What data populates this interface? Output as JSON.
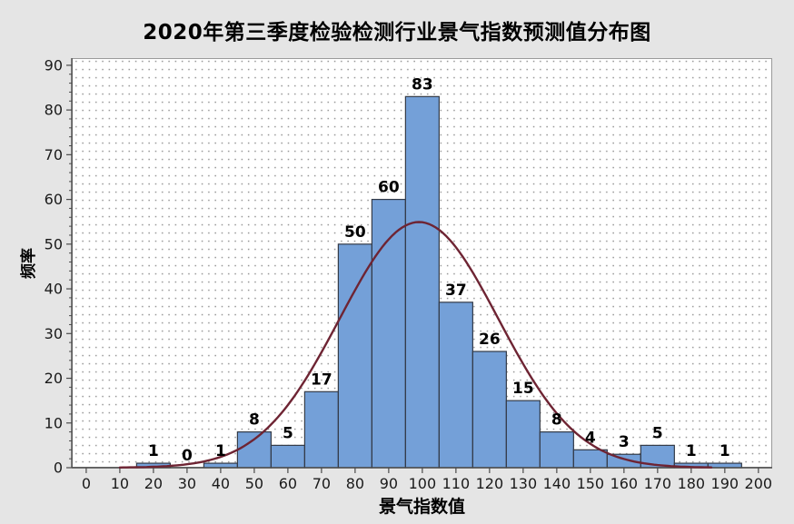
{
  "title": "2020年第三季度检验检测行业景气指数预测值分布图",
  "axes": {
    "x_label": "景气指数值",
    "y_label": "频率"
  },
  "chart_data": {
    "type": "bar",
    "subtype": "histogram-with-normal-fit",
    "title": "2020年第三季度检验检测行业景气指数预测值分布图",
    "xlabel": "景气指数值",
    "ylabel": "频率",
    "bin_centers": [
      20,
      30,
      40,
      50,
      60,
      70,
      80,
      90,
      100,
      110,
      120,
      130,
      140,
      150,
      160,
      170,
      180,
      190
    ],
    "bin_width": 10,
    "values": [
      1,
      0,
      1,
      8,
      5,
      17,
      50,
      60,
      83,
      37,
      26,
      15,
      8,
      4,
      3,
      5,
      1,
      1
    ],
    "x_ticks": [
      0,
      10,
      20,
      30,
      40,
      50,
      60,
      70,
      80,
      90,
      100,
      110,
      120,
      130,
      140,
      150,
      160,
      170,
      180,
      190,
      200
    ],
    "y_ticks": [
      0,
      10,
      20,
      30,
      40,
      50,
      60,
      70,
      80,
      90
    ],
    "xlim": [
      -4.3,
      204.1
    ],
    "ylim": [
      0,
      91.6
    ],
    "grid": "dotted-pattern-background",
    "legend": "none",
    "fit_curve": {
      "type": "normal",
      "mean": 99,
      "sd": 23.6,
      "total_n": 325,
      "x_start": 10,
      "x_end": 186,
      "peak_value": 55
    },
    "colors": {
      "bar_fill": "#74A0D8",
      "bar_border": "#333A47",
      "curve": "#6E2433",
      "plot_bg": "#FFFFFF",
      "outer_bg": "#E5E5E5",
      "dot": "#969696",
      "axis": "#4A4A4A",
      "plot_border": "#9A9A9A",
      "tick_label": "#1A1A1A",
      "bar_label": "#000000"
    }
  }
}
